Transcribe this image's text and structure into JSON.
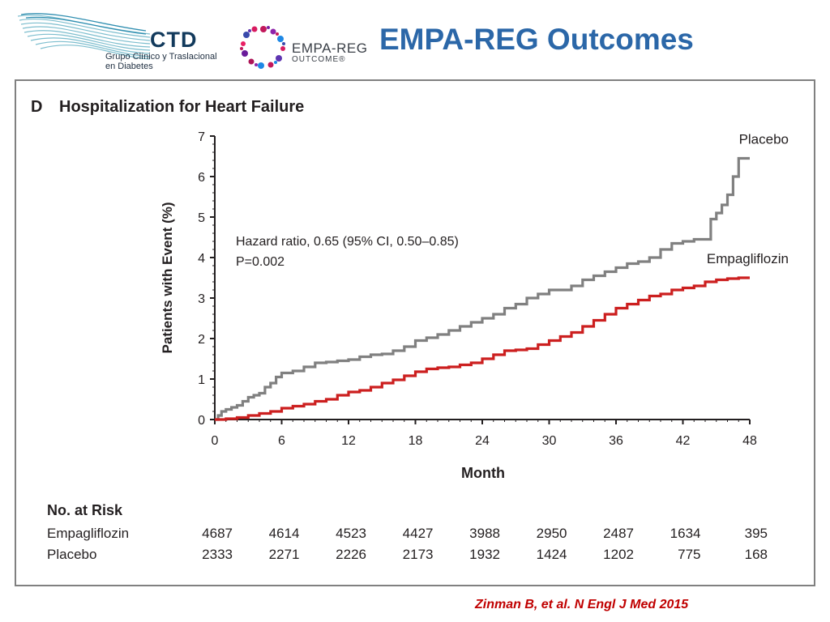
{
  "slide": {
    "title": "EMPA-REG Outcomes",
    "citation": "Zinman B, et al. N Engl J Med 2015"
  },
  "logos": {
    "ctd_name": "CTD",
    "ctd_subtitle": "Grupo Clínico y Traslacional en Diabetes",
    "empa_name": "EMPA-REG",
    "empa_subtitle": "OUTCOME®"
  },
  "chart_data": {
    "type": "line",
    "panel_letter": "D",
    "title": "Hospitalization for Heart Failure",
    "xlabel": "Month",
    "ylabel": "Patients with Event (%)",
    "xlim": [
      0,
      48
    ],
    "ylim": [
      0,
      7
    ],
    "xticks": [
      "0",
      "6",
      "12",
      "18",
      "24",
      "30",
      "36",
      "42",
      "48"
    ],
    "yticks": [
      "0",
      "1",
      "2",
      "3",
      "4",
      "5",
      "6",
      "7"
    ],
    "annotation_lines": [
      "Hazard ratio, 0.65 (95% CI, 0.50–0.85)",
      "P=0.002"
    ],
    "series": [
      {
        "name": "Placebo",
        "color": "#808080",
        "x": [
          0,
          0.3,
          0.6,
          1.0,
          1.5,
          2,
          2.5,
          3,
          3.5,
          4,
          4.5,
          5,
          5.5,
          6,
          7,
          8,
          9,
          10,
          11,
          12,
          13,
          14,
          15,
          16,
          17,
          18,
          19,
          20,
          21,
          22,
          23,
          24,
          25,
          26,
          27,
          28,
          29,
          30,
          31,
          32,
          33,
          34,
          35,
          36,
          37,
          38,
          39,
          40,
          41,
          42,
          43,
          44,
          44.5,
          45,
          45.5,
          46,
          46.5,
          47
        ],
        "values": [
          0,
          0.1,
          0.2,
          0.25,
          0.3,
          0.35,
          0.45,
          0.55,
          0.6,
          0.65,
          0.8,
          0.9,
          1.05,
          1.15,
          1.2,
          1.3,
          1.4,
          1.42,
          1.45,
          1.48,
          1.55,
          1.6,
          1.62,
          1.7,
          1.8,
          1.95,
          2.02,
          2.1,
          2.2,
          2.3,
          2.4,
          2.5,
          2.6,
          2.75,
          2.85,
          3.0,
          3.1,
          3.2,
          3.2,
          3.3,
          3.45,
          3.55,
          3.65,
          3.75,
          3.85,
          3.9,
          4.0,
          4.2,
          4.35,
          4.4,
          4.45,
          4.45,
          4.95,
          5.1,
          5.3,
          5.55,
          6.0,
          6.45
        ]
      },
      {
        "name": "Empagliflozin",
        "color": "#cc1f1f",
        "x": [
          0,
          1,
          2,
          3,
          4,
          5,
          6,
          7,
          8,
          9,
          10,
          11,
          12,
          13,
          14,
          15,
          16,
          17,
          18,
          19,
          20,
          21,
          22,
          23,
          24,
          25,
          26,
          27,
          28,
          29,
          30,
          31,
          32,
          33,
          34,
          35,
          36,
          37,
          38,
          39,
          40,
          41,
          42,
          43,
          44,
          45,
          46,
          47
        ],
        "values": [
          0,
          0.02,
          0.05,
          0.1,
          0.15,
          0.2,
          0.28,
          0.33,
          0.38,
          0.45,
          0.5,
          0.6,
          0.68,
          0.72,
          0.8,
          0.9,
          0.98,
          1.08,
          1.18,
          1.25,
          1.28,
          1.3,
          1.35,
          1.4,
          1.5,
          1.6,
          1.7,
          1.72,
          1.75,
          1.85,
          1.95,
          2.05,
          2.15,
          2.3,
          2.45,
          2.6,
          2.75,
          2.85,
          2.95,
          3.05,
          3.1,
          3.2,
          3.25,
          3.3,
          3.4,
          3.45,
          3.48,
          3.5
        ]
      }
    ],
    "risk_table": {
      "header": "No. at Risk",
      "rows": [
        {
          "label": "Empagliflozin",
          "values": [
            "4687",
            "4614",
            "4523",
            "4427",
            "3988",
            "2950",
            "2487",
            "1634",
            "395"
          ]
        },
        {
          "label": "Placebo",
          "values": [
            "2333",
            "2271",
            "2226",
            "2173",
            "1932",
            "1424",
            "1202",
            "775",
            "168"
          ]
        }
      ]
    }
  }
}
